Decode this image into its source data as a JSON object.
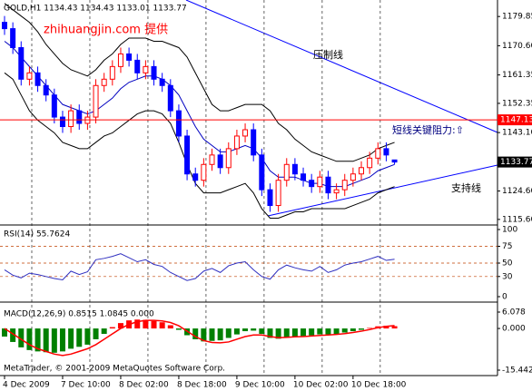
{
  "chart_data": [
    {
      "type": "candlestick",
      "title": "GOLD,H1  1134.43 1134.43 1133.01 1133.77",
      "watermark": "zhihuangjin.com 提供",
      "annotations": {
        "resistance_line": "压制线",
        "key_resistance": "短线关键阻力:⇧",
        "support_line": "支持线"
      },
      "resistance_level": 1147.13,
      "current_price": 1133.77,
      "ylim": [
        1114.7,
        1184.5
      ],
      "yticks": [
        1179.85,
        {
          "value": 1170.6,
          "label": "1170.60"
        },
        1161.35,
        1152.35,
        {
          "value": 1143.1,
          "label": "1143.10"
        },
        {
          "value": 1124.6,
          "label": "1124.60"
        },
        {
          "value": 1115.6,
          "label": "1115.60"
        }
      ],
      "open": [
        1178,
        1176,
        1170,
        1160,
        1162,
        1158,
        1155,
        1148,
        1145,
        1150,
        1146,
        1148,
        1158,
        1160,
        1164,
        1168,
        1166,
        1162,
        1164,
        1160,
        1158,
        1150,
        1142,
        1130,
        1128,
        1133,
        1136,
        1132,
        1138,
        1142,
        1144,
        1136,
        1125,
        1120,
        1128,
        1133,
        1130,
        1128,
        1126,
        1129,
        1124,
        1125,
        1128,
        1130,
        1132,
        1135,
        1138,
        1134.43
      ],
      "high": [
        1180,
        1178,
        1172,
        1164,
        1164,
        1160,
        1157,
        1150,
        1152,
        1152,
        1150,
        1160,
        1162,
        1166,
        1170,
        1170,
        1168,
        1166,
        1166,
        1162,
        1160,
        1152,
        1144,
        1132,
        1135,
        1138,
        1138,
        1140,
        1144,
        1146,
        1146,
        1138,
        1127,
        1130,
        1135,
        1135,
        1132,
        1130,
        1131,
        1131,
        1127,
        1130,
        1132,
        1134,
        1137,
        1140,
        1140,
        1134.43
      ],
      "low": [
        1174,
        1168,
        1158,
        1158,
        1156,
        1153,
        1146,
        1143,
        1143,
        1144,
        1144,
        1146,
        1156,
        1158,
        1162,
        1164,
        1160,
        1160,
        1158,
        1156,
        1148,
        1140,
        1128,
        1126,
        1126,
        1131,
        1130,
        1130,
        1136,
        1140,
        1134,
        1123,
        1118,
        1118,
        1126,
        1128,
        1126,
        1124,
        1124,
        1122,
        1122,
        1123,
        1126,
        1128,
        1130,
        1133,
        1134,
        1133.01
      ],
      "close": [
        1176,
        1170,
        1160,
        1162,
        1158,
        1155,
        1148,
        1145,
        1150,
        1146,
        1148,
        1158,
        1160,
        1164,
        1168,
        1166,
        1162,
        1164,
        1160,
        1158,
        1150,
        1142,
        1130,
        1128,
        1133,
        1136,
        1132,
        1138,
        1142,
        1144,
        1136,
        1125,
        1120,
        1128,
        1133,
        1130,
        1128,
        1126,
        1129,
        1124,
        1125,
        1128,
        1130,
        1132,
        1135,
        1138,
        1136,
        1133.77
      ],
      "up_color": "#ff0000",
      "down_color": "#0000ff",
      "series": [
        {
          "color": "#000000",
          "values": [
            1184,
            1182,
            1180,
            1178,
            1175,
            1171,
            1168,
            1165,
            1163,
            1162,
            1161,
            1163,
            1166,
            1168,
            1171,
            1173,
            1173,
            1173,
            1172,
            1172,
            1171,
            1170,
            1167,
            1162,
            1157,
            1152,
            1150,
            1150,
            1151,
            1152,
            1152,
            1152,
            1150,
            1146,
            1144,
            1141,
            1139,
            1137,
            1136,
            1135,
            1134,
            1134,
            1134,
            1135,
            1136,
            1138,
            1139,
            1140
          ]
        },
        {
          "color": "#0000c0",
          "values": [
            1172,
            1170,
            1167,
            1164,
            1161,
            1158,
            1155,
            1152,
            1151,
            1150,
            1149,
            1150,
            1152,
            1154,
            1157,
            1159,
            1160,
            1161,
            1161,
            1160,
            1158,
            1155,
            1150,
            1145,
            1141,
            1139,
            1137,
            1137,
            1138,
            1139,
            1138,
            1135,
            1131,
            1129,
            1129,
            1129,
            1128,
            1127,
            1127,
            1126,
            1126,
            1126,
            1127,
            1128,
            1129,
            1131,
            1132,
            1133
          ]
        },
        {
          "color": "#000000",
          "values": [
            1162,
            1160,
            1155,
            1150,
            1147,
            1145,
            1143,
            1140,
            1139,
            1138,
            1138,
            1140,
            1142,
            1143,
            1145,
            1147,
            1149,
            1150,
            1150,
            1149,
            1146,
            1140,
            1133,
            1127,
            1124,
            1124,
            1124,
            1125,
            1126,
            1127,
            1124,
            1119,
            1116,
            1116,
            1117,
            1118,
            1118,
            1119,
            1119,
            1119,
            1119,
            1119,
            1120,
            1121,
            1122,
            1124,
            1125,
            1126
          ]
        }
      ]
    },
    {
      "type": "line",
      "title": "RSI(14) 55.7624",
      "ylim": [
        0,
        100
      ],
      "yticks": [
        100,
        75,
        50,
        30,
        0
      ],
      "series": [
        {
          "color": "#3030c0",
          "values": [
            40,
            32,
            28,
            35,
            33,
            30,
            27,
            25,
            38,
            33,
            37,
            55,
            57,
            60,
            64,
            58,
            52,
            55,
            48,
            45,
            36,
            30,
            24,
            27,
            38,
            42,
            36,
            46,
            50,
            52,
            40,
            30,
            26,
            40,
            47,
            43,
            40,
            38,
            45,
            36,
            40,
            47,
            50,
            52,
            56,
            60,
            54,
            55.7624
          ]
        }
      ]
    },
    {
      "type": "macd",
      "title": "MACD(12,26,9) 0.8515 1.0845 0.000",
      "footer": "MetaTrader, © 2001-2009 MetaQuotes Software Corp.",
      "ylim": [
        -15.442,
        6.078
      ],
      "yticks": [
        6.078,
        {
          "value": 0,
          "label": "0.000"
        },
        -15.442
      ],
      "histogram": {
        "up_color": "#ff0000",
        "down_color": "#008000",
        "values": [
          -3,
          -5,
          -7,
          -8,
          -8.5,
          -8.8,
          -9,
          -8.5,
          -7.5,
          -6.8,
          -6,
          -4,
          -2,
          0.5,
          2,
          3,
          3.3,
          3.2,
          2.8,
          2.3,
          1.2,
          -0.5,
          -2.5,
          -4,
          -4.8,
          -4.6,
          -4.4,
          -3.5,
          -2.2,
          -1,
          -0.8,
          -2,
          -3.5,
          -3.8,
          -3.2,
          -3,
          -2.8,
          -2.6,
          -2.2,
          -2.2,
          -2,
          -1.5,
          -1,
          -0.5,
          0.2,
          0.8,
          1.0,
          0.8515
        ]
      },
      "series": [
        {
          "color": "#ff0000",
          "values": [
            0,
            -2,
            -4,
            -6,
            -7.5,
            -8.5,
            -9.5,
            -10,
            -9.5,
            -8.5,
            -7.5,
            -6,
            -4,
            -2,
            0,
            1.5,
            2.5,
            3,
            3,
            2.8,
            2.2,
            1,
            -1,
            -3,
            -4.5,
            -5.2,
            -5.3,
            -5,
            -4,
            -3,
            -2.4,
            -2.4,
            -3,
            -3.4,
            -3.3,
            -3.1,
            -3,
            -2.8,
            -2.6,
            -2.4,
            -2.2,
            -1.9,
            -1.5,
            -1,
            -0.4,
            0.3,
            0.8,
            1.0845
          ]
        }
      ],
      "xticks": [
        {
          "value": 0,
          "label": "4 Dec 2009"
        },
        {
          "value": 7,
          "label": "7 Dec 10:00"
        },
        {
          "value": 14,
          "label": "8 Dec 02:00"
        },
        {
          "value": 21,
          "label": "8 Dec 18:00"
        },
        {
          "value": 28,
          "label": "9 Dec 10:00"
        },
        {
          "value": 35,
          "label": "10 Dec 02:00"
        },
        {
          "value": 42,
          "label": "10 Dec 18:00"
        }
      ]
    }
  ]
}
